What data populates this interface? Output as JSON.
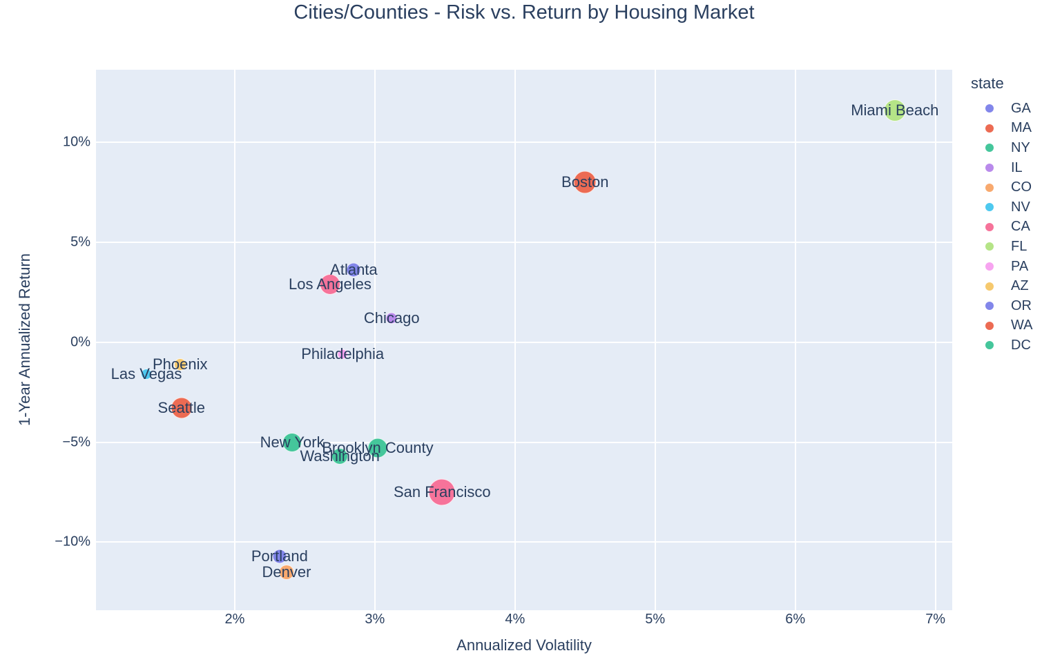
{
  "title": "Cities/Counties - Risk vs. Return by Housing Market",
  "x_axis": {
    "title": "Annualized Volatility",
    "ticks": [
      {
        "value": 2,
        "label": "2%"
      },
      {
        "value": 3,
        "label": "3%"
      },
      {
        "value": 4,
        "label": "4%"
      },
      {
        "value": 5,
        "label": "5%"
      },
      {
        "value": 6,
        "label": "6%"
      },
      {
        "value": 7,
        "label": "7%"
      }
    ]
  },
  "y_axis": {
    "title": "1-Year Annualized Return",
    "ticks": [
      {
        "value": -10,
        "label": "−10%"
      },
      {
        "value": -5,
        "label": "−5%"
      },
      {
        "value": 0,
        "label": "0%"
      },
      {
        "value": 5,
        "label": "5%"
      },
      {
        "value": 10,
        "label": "10%"
      }
    ]
  },
  "legend": {
    "title": "state",
    "items": [
      {
        "label": "GA",
        "color": "#8286EA"
      },
      {
        "label": "MA",
        "color": "#EC6B53"
      },
      {
        "label": "NY",
        "color": "#45C69B"
      },
      {
        "label": "IL",
        "color": "#B98AEB"
      },
      {
        "label": "CO",
        "color": "#F8A96E"
      },
      {
        "label": "NV",
        "color": "#4EC9EF"
      },
      {
        "label": "CA",
        "color": "#F6739A"
      },
      {
        "label": "FL",
        "color": "#B5E487"
      },
      {
        "label": "PA",
        "color": "#F7A4F0"
      },
      {
        "label": "AZ",
        "color": "#F6C96E"
      },
      {
        "label": "OR",
        "color": "#8286EA"
      },
      {
        "label": "WA",
        "color": "#EC6B53"
      },
      {
        "label": "DC",
        "color": "#45C69B"
      }
    ]
  },
  "colors": {
    "paper_bg": "#ffffff",
    "plot_bg": "#e5ecf6",
    "grid": "#ffffff",
    "text": "#2a3f5f"
  },
  "chart_data": {
    "type": "scatter",
    "title": "Cities/Counties - Risk vs. Return by Housing Market",
    "xlabel": "Annualized Volatility",
    "ylabel": "1-Year Annualized Return",
    "x_unit": "percent",
    "y_unit": "percent",
    "x_range": [
      1.01,
      7.12
    ],
    "y_range": [
      -13.4,
      13.62
    ],
    "grid": true,
    "legend_title": "state",
    "legend_position": "right",
    "points": [
      {
        "city": "Miami Beach",
        "state": "FL",
        "x": 6.71,
        "y": 11.6,
        "size": 32
      },
      {
        "city": "Boston",
        "state": "MA",
        "x": 4.5,
        "y": 8.0,
        "size": 33
      },
      {
        "city": "Atlanta",
        "state": "GA",
        "x": 2.85,
        "y": 3.6,
        "size": 21
      },
      {
        "city": "Los Angeles",
        "state": "CA",
        "x": 2.68,
        "y": 2.9,
        "size": 30
      },
      {
        "city": "Chicago",
        "state": "IL",
        "x": 3.12,
        "y": 1.2,
        "size": 17
      },
      {
        "city": "Philadelphia",
        "state": "PA",
        "x": 2.77,
        "y": -0.6,
        "size": 15
      },
      {
        "city": "Phoenix",
        "state": "AZ",
        "x": 1.61,
        "y": -1.1,
        "size": 18
      },
      {
        "city": "Las Vegas",
        "state": "NV",
        "x": 1.37,
        "y": -1.6,
        "size": 16
      },
      {
        "city": "Seattle",
        "state": "WA",
        "x": 1.62,
        "y": -3.3,
        "size": 31
      },
      {
        "city": "New York",
        "state": "NY",
        "x": 2.41,
        "y": -5.0,
        "size": 28
      },
      {
        "city": "Brooklyn County",
        "state": "NY",
        "x": 3.02,
        "y": -5.3,
        "size": 29
      },
      {
        "city": "Washington",
        "state": "DC",
        "x": 2.75,
        "y": -5.7,
        "size": 24
      },
      {
        "city": "San Francisco",
        "state": "CA",
        "x": 3.48,
        "y": -7.5,
        "size": 39
      },
      {
        "city": "Portland",
        "state": "OR",
        "x": 2.32,
        "y": -10.7,
        "size": 21
      },
      {
        "city": "Denver",
        "state": "CO",
        "x": 2.37,
        "y": -11.5,
        "size": 22
      }
    ]
  }
}
